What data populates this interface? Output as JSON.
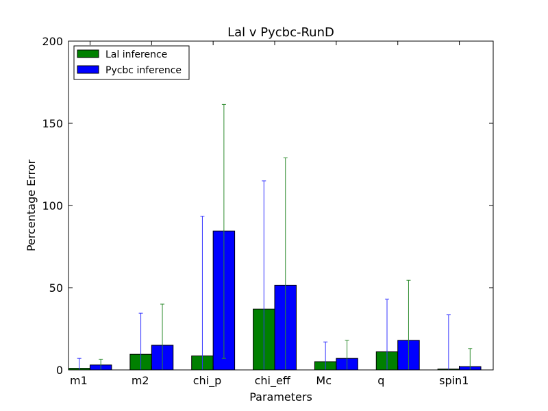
{
  "chart_data": {
    "type": "bar",
    "title": "Lal v Pycbc-RunD",
    "xlabel": "Parameters",
    "ylabel": "Percentage Error",
    "ylim": [
      0,
      200
    ],
    "yticks": [
      "0",
      "50",
      "100",
      "150",
      "200"
    ],
    "categories": [
      "m1",
      "m2",
      "chi_p",
      "chi_eff",
      "Mc",
      "q",
      "spin1"
    ],
    "grid": false,
    "legend_position": "top-left",
    "series": [
      {
        "name": "Lal inference",
        "color": "#008000",
        "error_color": "#3333ff",
        "values": [
          1.0,
          9.5,
          8.5,
          37.0,
          5.0,
          11.0,
          0.5
        ],
        "error_upper": [
          7.0,
          34.5,
          93.5,
          115.0,
          17.0,
          43.0,
          33.5
        ]
      },
      {
        "name": "Pycbc inference",
        "color": "#0000ff",
        "error_color": "#2e8b2e",
        "values": [
          3.0,
          15.0,
          84.5,
          51.5,
          7.0,
          18.0,
          2.0
        ],
        "error_upper": [
          6.5,
          40.0,
          161.5,
          129.0,
          18.0,
          54.5,
          13.0
        ],
        "error_lower": [
          0.0,
          0.0,
          7.0,
          0.0,
          0.0,
          0.0,
          0.0
        ]
      }
    ]
  }
}
